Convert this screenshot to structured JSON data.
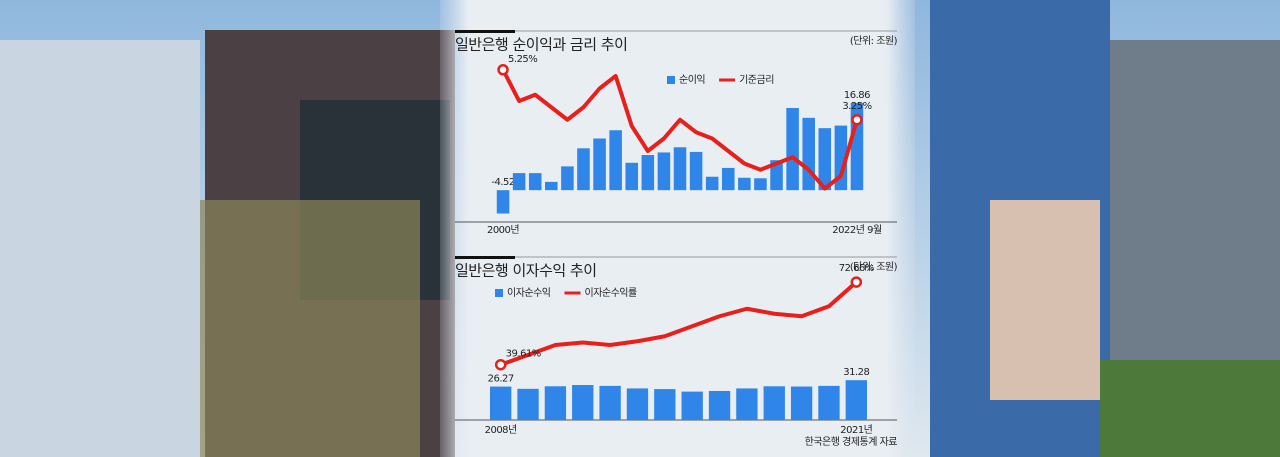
{
  "chart_data": [
    {
      "type": "combo",
      "title": "일반은행 순이익과 금리 추이",
      "unit": "(단위: 조원)",
      "categories": [
        "2000년",
        null,
        null,
        null,
        null,
        null,
        null,
        null,
        null,
        null,
        null,
        null,
        null,
        null,
        null,
        null,
        null,
        null,
        null,
        null,
        null,
        null,
        "2022년 9월"
      ],
      "ylim": [
        -5,
        25
      ],
      "y2lim": [
        -0.6,
        5.6
      ],
      "series": [
        {
          "name": "순이익",
          "type": "bar",
          "color": "#2f86e8",
          "values": [
            -4.52,
            3.3,
            3.3,
            1.6,
            4.6,
            8.1,
            10.0,
            11.6,
            5.3,
            6.8,
            7.3,
            8.3,
            7.4,
            2.6,
            4.3,
            2.4,
            2.3,
            5.8,
            15.9,
            14.0,
            12.0,
            12.5,
            16.86
          ],
          "value_labels": [
            "-4.52",
            null,
            null,
            null,
            null,
            null,
            null,
            null,
            null,
            null,
            null,
            null,
            null,
            null,
            null,
            null,
            null,
            null,
            null,
            null,
            null,
            null,
            "16.86"
          ]
        },
        {
          "name": "기준금리",
          "type": "line",
          "axis": "y2",
          "color": "#e8201c",
          "values": [
            5.25,
            4.0,
            4.25,
            3.75,
            3.25,
            3.75,
            4.5,
            5.0,
            3.0,
            2.0,
            2.5,
            3.25,
            2.75,
            2.5,
            2.0,
            1.5,
            1.25,
            1.5,
            1.75,
            1.25,
            0.5,
            1.0,
            3.25
          ],
          "value_labels": [
            "5.25%",
            null,
            null,
            null,
            null,
            null,
            null,
            null,
            null,
            null,
            null,
            null,
            null,
            null,
            null,
            null,
            null,
            null,
            null,
            null,
            null,
            null,
            "3.25%"
          ]
        }
      ]
    },
    {
      "type": "combo",
      "title": "일반은행 이자수익 추이",
      "unit": "(단위: 조원)",
      "source": "한국은행 경제통계 자료",
      "categories": [
        "2008년",
        null,
        null,
        null,
        null,
        null,
        null,
        null,
        null,
        null,
        null,
        null,
        null,
        "2021년"
      ],
      "ylim": [
        0,
        110
      ],
      "y2lim": [
        17.5,
        73.5
      ],
      "series": [
        {
          "name": "이자순수익",
          "type": "bar",
          "color": "#2f86e8",
          "values": [
            26.27,
            24.5,
            26.5,
            27.5,
            26.8,
            24.8,
            24.3,
            22.3,
            22.8,
            24.8,
            26.5,
            26.3,
            26.8,
            31.28
          ],
          "value_labels": [
            "26.27",
            null,
            null,
            null,
            null,
            null,
            null,
            null,
            null,
            null,
            null,
            null,
            null,
            "31.28"
          ]
        },
        {
          "name": "이자순수익률",
          "type": "line",
          "axis": "y2",
          "color": "#e8201c",
          "values": [
            39.61,
            43.5,
            47.5,
            48.5,
            47.5,
            49.0,
            51.0,
            55.0,
            59.0,
            62.0,
            60.0,
            59.0,
            63.0,
            72.66
          ],
          "value_labels": [
            "39.61%",
            null,
            null,
            null,
            null,
            null,
            null,
            null,
            null,
            null,
            null,
            null,
            null,
            "72.66%"
          ]
        }
      ]
    }
  ]
}
